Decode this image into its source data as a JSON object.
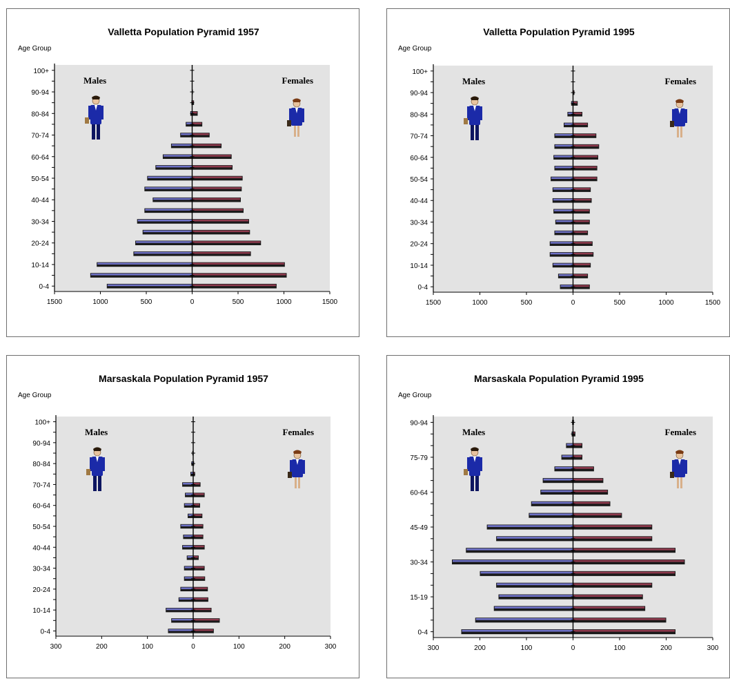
{
  "chart_data": [
    {
      "type": "bar",
      "title": "Valletta Population Pyramid 1957",
      "ylabel": "Age Group",
      "series": [
        {
          "name": "Males"
        },
        {
          "name": "Females"
        }
      ],
      "categories": [
        "0-4",
        "5-9",
        "10-14",
        "15-19",
        "20-24",
        "25-29",
        "30-34",
        "35-39",
        "40-44",
        "45-49",
        "50-54",
        "55-59",
        "60-64",
        "65-69",
        "70-74",
        "75-79",
        "80-84",
        "85-89",
        "90-94",
        "95-99",
        "100+"
      ],
      "tick_labels": [
        "0-4",
        "",
        "10-14",
        "",
        "20-24",
        "",
        "30-34",
        "",
        "40-44",
        "",
        "50-54",
        "",
        "60-64",
        "",
        "70-74",
        "",
        "80-84",
        "",
        "90-94",
        "",
        "100+"
      ],
      "males": [
        930,
        1110,
        1040,
        640,
        620,
        540,
        600,
        520,
        430,
        520,
        490,
        400,
        320,
        230,
        130,
        70,
        20,
        8,
        3,
        1,
        0
      ],
      "females": [
        920,
        1030,
        1010,
        640,
        750,
        630,
        620,
        560,
        530,
        540,
        550,
        440,
        430,
        320,
        190,
        110,
        60,
        20,
        8,
        2,
        0
      ],
      "xlim": [
        -1500,
        1500
      ],
      "xticks": [
        "1500",
        "1000",
        "500",
        "0",
        "500",
        "1000",
        "1500"
      ],
      "xtick_values": [
        -1500,
        -1000,
        -500,
        0,
        500,
        1000,
        1500
      ],
      "grid": false,
      "legend": "inline labels top-left / top-right",
      "colors": {
        "male": "#6f72c8",
        "female": "#8f3a4e",
        "bar_dark": "#1a1a1a",
        "plot_bg": "#e3e3e3"
      }
    },
    {
      "type": "bar",
      "title": "Valletta Population Pyramid 1995",
      "ylabel": "Age Group",
      "series": [
        {
          "name": "Males"
        },
        {
          "name": "Females"
        }
      ],
      "categories": [
        "0-4",
        "5-9",
        "10-14",
        "15-19",
        "20-24",
        "25-29",
        "30-34",
        "35-39",
        "40-44",
        "45-49",
        "50-54",
        "55-59",
        "60-64",
        "65-69",
        "70-74",
        "75-79",
        "80-84",
        "85-89",
        "90-94",
        "95-99",
        "100+"
      ],
      "tick_labels": [
        "0-4",
        "",
        "10-14",
        "",
        "20-24",
        "",
        "30-34",
        "",
        "40-44",
        "",
        "50-54",
        "",
        "60-64",
        "",
        "70-74",
        "",
        "80-84",
        "",
        "90-94",
        "",
        "100+"
      ],
      "males": [
        140,
        160,
        220,
        250,
        250,
        200,
        190,
        210,
        220,
        220,
        240,
        200,
        210,
        200,
        200,
        100,
        60,
        20,
        5,
        2,
        0
      ],
      "females": [
        180,
        160,
        190,
        220,
        210,
        160,
        180,
        180,
        200,
        190,
        260,
        260,
        270,
        280,
        250,
        160,
        100,
        50,
        15,
        3,
        0
      ],
      "xlim": [
        -1500,
        1500
      ],
      "xticks": [
        "1500",
        "1000",
        "500",
        "0",
        "500",
        "1000",
        "1500"
      ],
      "xtick_values": [
        -1500,
        -1000,
        -500,
        0,
        500,
        1000,
        1500
      ],
      "grid": false,
      "legend": "inline labels top-left / top-right",
      "colors": {
        "male": "#6f72c8",
        "female": "#8f3a4e",
        "bar_dark": "#1a1a1a",
        "plot_bg": "#e3e3e3"
      }
    },
    {
      "type": "bar",
      "title": "Marsaskala Population Pyramid 1957",
      "ylabel": "Age Group",
      "series": [
        {
          "name": "Males"
        },
        {
          "name": "Females"
        }
      ],
      "categories": [
        "0-4",
        "5-9",
        "10-14",
        "15-19",
        "20-24",
        "25-29",
        "30-34",
        "35-39",
        "40-44",
        "45-49",
        "50-54",
        "55-59",
        "60-64",
        "65-69",
        "70-74",
        "75-79",
        "80-84",
        "85-89",
        "90-94",
        "95-99",
        "100+"
      ],
      "tick_labels": [
        "0-4",
        "",
        "10-14",
        "",
        "20-24",
        "",
        "30-34",
        "",
        "40-44",
        "",
        "50-54",
        "",
        "60-64",
        "",
        "70-74",
        "",
        "80-84",
        "",
        "90-94",
        "",
        "100+"
      ],
      "males": [
        55,
        48,
        60,
        32,
        28,
        20,
        20,
        14,
        24,
        22,
        28,
        12,
        20,
        18,
        24,
        6,
        4,
        2,
        1,
        0,
        0
      ],
      "females": [
        45,
        58,
        40,
        33,
        32,
        26,
        25,
        12,
        25,
        22,
        22,
        20,
        15,
        25,
        16,
        4,
        2,
        1,
        0,
        0,
        0
      ],
      "xlim": [
        -300,
        300
      ],
      "xticks": [
        "300",
        "200",
        "100",
        "0",
        "100",
        "200",
        "300"
      ],
      "xtick_values": [
        -300,
        -200,
        -100,
        0,
        100,
        200,
        300
      ],
      "grid": false,
      "legend": "inline labels top-left / top-right",
      "colors": {
        "male": "#6f72c8",
        "female": "#8f3a4e",
        "bar_dark": "#1a1a1a",
        "plot_bg": "#e3e3e3"
      }
    },
    {
      "type": "bar",
      "title": "Marsaskala Population Pyramid 1995",
      "ylabel": "Age Group",
      "series": [
        {
          "name": "Males"
        },
        {
          "name": "Females"
        }
      ],
      "categories": [
        "0-4",
        "5-9",
        "10-14",
        "15-19",
        "20-24",
        "25-29",
        "30-34",
        "35-39",
        "40-44",
        "45-49",
        "50-54",
        "55-59",
        "60-64",
        "65-69",
        "70-74",
        "75-79",
        "80-84",
        "85-89",
        "90-94"
      ],
      "tick_labels": [
        "0-4",
        "",
        "",
        "15-19",
        "",
        "",
        "30-34",
        "",
        "",
        "45-49",
        "",
        "",
        "60-64",
        "",
        "",
        "75-79",
        "",
        "",
        "90-94"
      ],
      "males": [
        240,
        210,
        170,
        160,
        165,
        200,
        260,
        230,
        165,
        185,
        95,
        90,
        70,
        65,
        40,
        25,
        15,
        3,
        2
      ],
      "females": [
        220,
        200,
        155,
        150,
        170,
        220,
        240,
        220,
        170,
        170,
        105,
        80,
        75,
        65,
        45,
        20,
        20,
        5,
        2
      ],
      "xlim": [
        -300,
        300
      ],
      "xticks": [
        "300",
        "200",
        "100",
        "0",
        "100",
        "200",
        "300"
      ],
      "xtick_values": [
        -300,
        -200,
        -100,
        0,
        100,
        200,
        300
      ],
      "grid": false,
      "legend": "inline labels top-left / top-right",
      "colors": {
        "male": "#6f72c8",
        "female": "#8f3a4e",
        "bar_dark": "#1a1a1a",
        "plot_bg": "#e3e3e3"
      }
    }
  ]
}
